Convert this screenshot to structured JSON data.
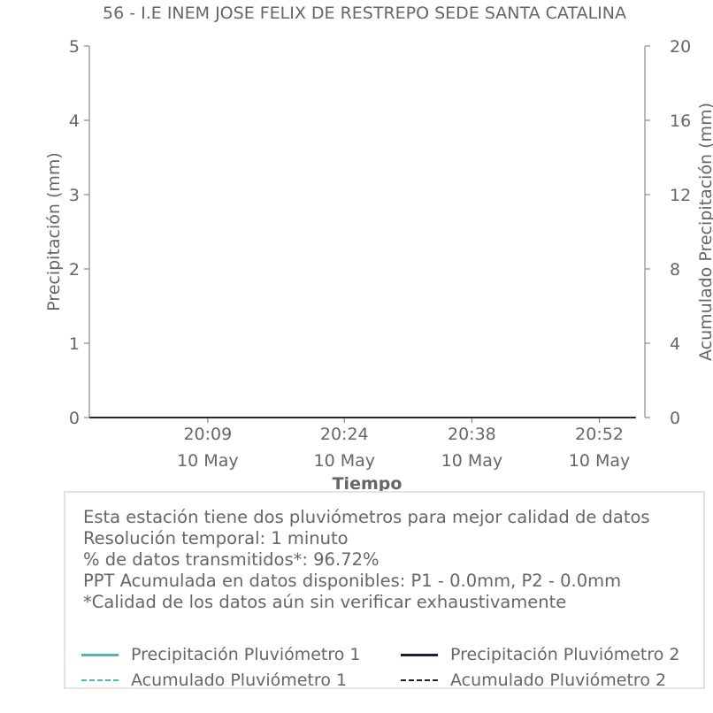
{
  "chart_data": {
    "type": "line",
    "title": "56 - I.E INEM JOSE FELIX DE RESTREPO SEDE SANTA CATALINA",
    "xlabel": "Tiempo",
    "ylabel": "Precipitación (mm)",
    "ylabel_right": "Acumulado Precipitación (mm)",
    "ylim": [
      0,
      5
    ],
    "ylim_right": [
      0,
      20
    ],
    "yticks": [
      "0",
      "1",
      "2",
      "3",
      "4",
      "5"
    ],
    "yticks_right": [
      "0",
      "4",
      "8",
      "12",
      "16",
      "20"
    ],
    "xlim": [
      "2024-05-10 19:56",
      "2024-05-10 20:57"
    ],
    "xticks": [
      {
        "t": "2024-05-10 20:09",
        "time": "20:09",
        "date": "10 May"
      },
      {
        "t": "2024-05-10 20:24",
        "time": "20:24",
        "date": "10 May"
      },
      {
        "t": "2024-05-10 20:38",
        "time": "20:38",
        "date": "10 May"
      },
      {
        "t": "2024-05-10 20:52",
        "time": "20:52",
        "date": "10 May"
      }
    ],
    "series": [
      {
        "name": "Precipitación Pluviómetro 1",
        "color": "#4fb3bf",
        "style": "solid",
        "axis": "left",
        "x": [
          "2024-05-10 19:56",
          "2024-05-10 20:56"
        ],
        "values": [
          0,
          0
        ]
      },
      {
        "name": "Precipitación Pluviómetro 2",
        "color": "#1c1e3a",
        "style": "solid",
        "axis": "left",
        "x": [
          "2024-05-10 19:56",
          "2024-05-10 20:56"
        ],
        "values": [
          0,
          0
        ]
      },
      {
        "name": "Acumulado Pluviómetro 1",
        "color": "#4fb3bf",
        "style": "dashed",
        "axis": "right",
        "x": [
          "2024-05-10 19:56",
          "2024-05-10 20:56"
        ],
        "values": [
          0,
          0
        ]
      },
      {
        "name": "Acumulado Pluviómetro 2",
        "color": "#1c1e3a",
        "style": "dashed",
        "axis": "right",
        "x": [
          "2024-05-10 19:56",
          "2024-05-10 20:56"
        ],
        "values": [
          0,
          0
        ]
      }
    ],
    "grid": false,
    "legend_position": "bottom"
  },
  "info": {
    "lines": [
      "Esta estación tiene dos pluviómetros para mejor calidad de datos",
      "Resolución temporal: 1 minuto",
      "% de datos transmitidos*: 96.72%",
      "PPT Acumulada en datos disponibles: P1 - 0.0mm, P2 - 0.0mm",
      "*Calidad de los datos aún sin verificar exhaustivamente"
    ]
  }
}
